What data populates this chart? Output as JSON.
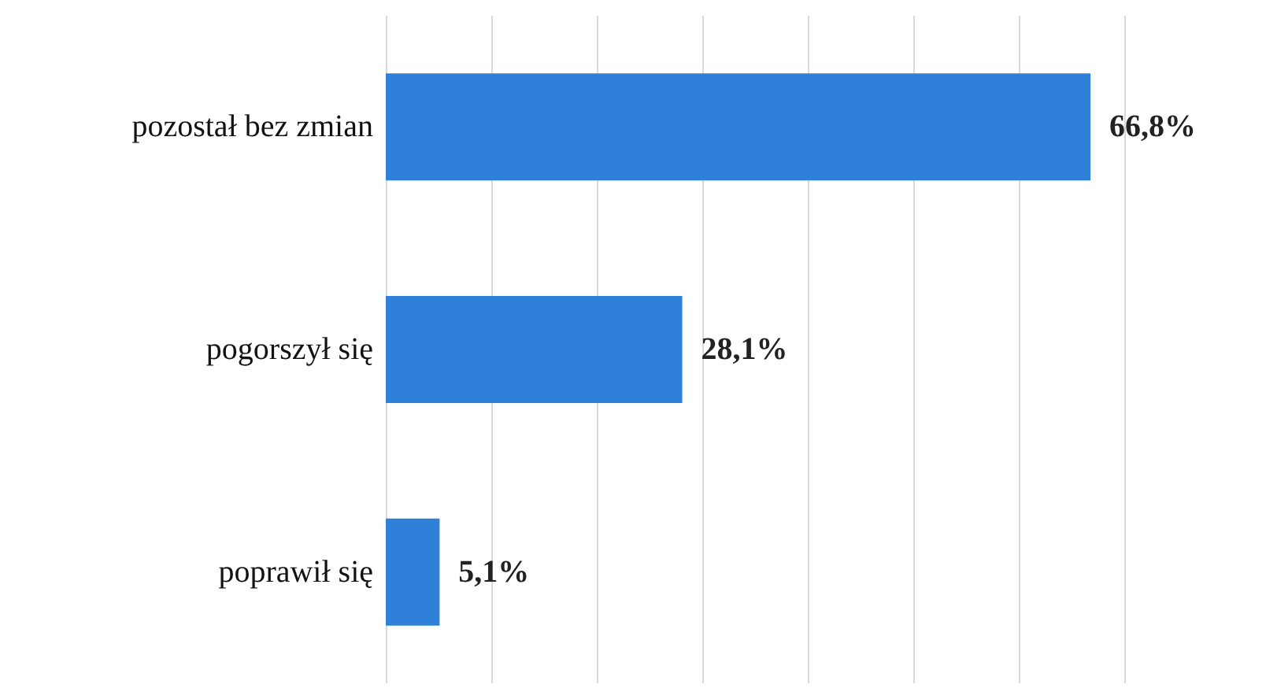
{
  "chart_data": {
    "type": "bar",
    "orientation": "horizontal",
    "categories": [
      "pozostał bez zmian",
      "pogorszył się",
      "poprawił się"
    ],
    "values": [
      66.8,
      28.1,
      5.1
    ],
    "value_labels": [
      "66,8%",
      "28,1%",
      "5,1%"
    ],
    "color": "#2f80d8",
    "grid": "x",
    "tick_labels": "y"
  }
}
